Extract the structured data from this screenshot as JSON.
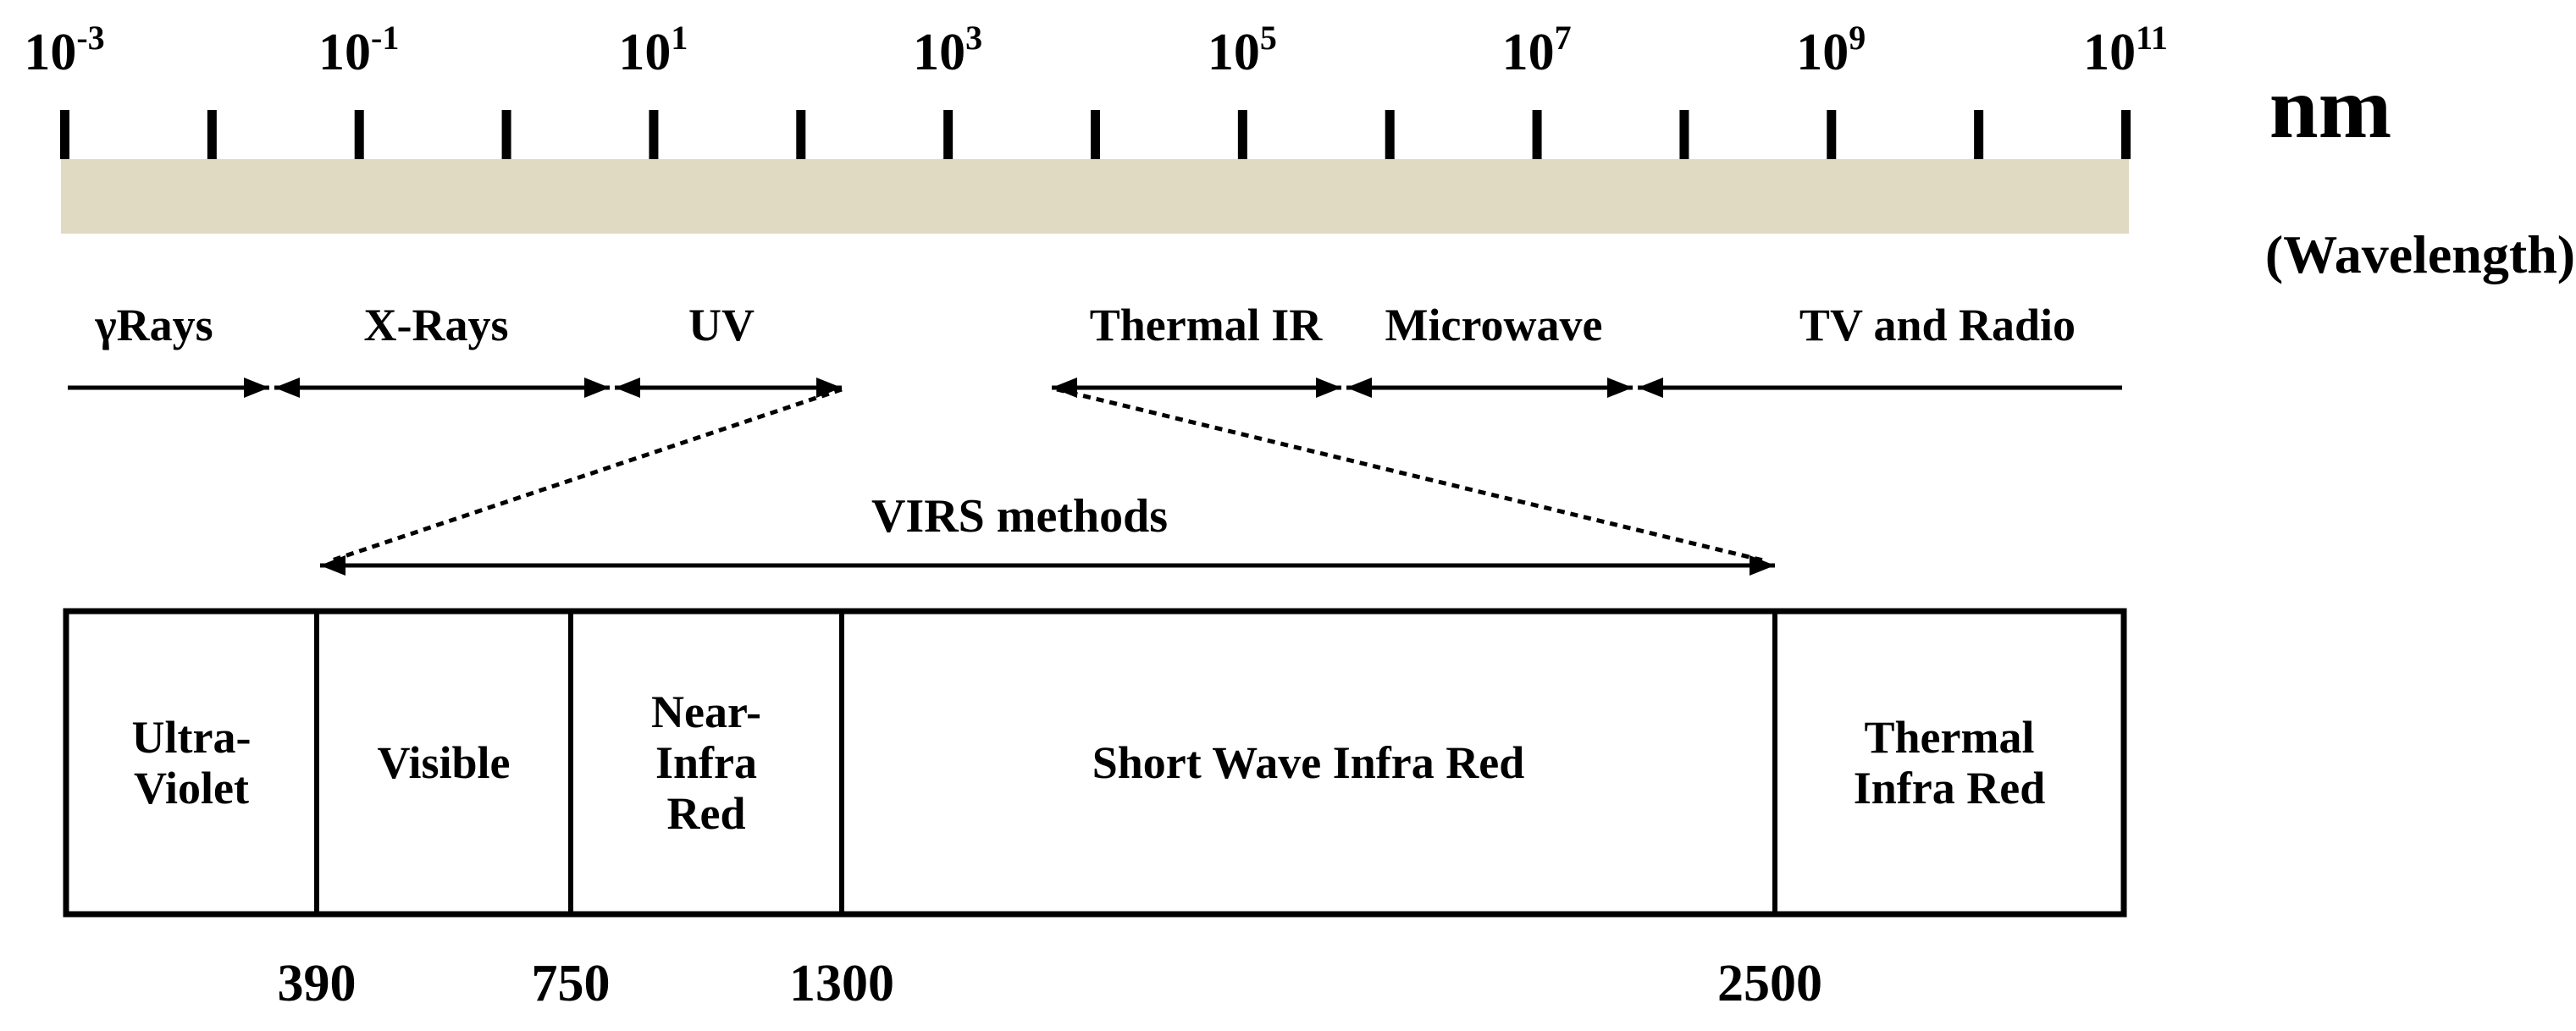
{
  "scale": {
    "tick_labels": [
      {
        "base": "10",
        "exp": "-3"
      },
      {
        "base": "10",
        "exp": "-1"
      },
      {
        "base": "10",
        "exp": "1"
      },
      {
        "base": "10",
        "exp": "3"
      },
      {
        "base": "10",
        "exp": "5"
      },
      {
        "base": "10",
        "exp": "7"
      },
      {
        "base": "10",
        "exp": "9"
      },
      {
        "base": "10",
        "exp": "11"
      }
    ],
    "unit": "nm",
    "unit_caption": "(Wavelength)",
    "bar_color": "#e0dac2"
  },
  "regions": [
    "γRays",
    "X-Rays",
    "UV",
    "Thermal IR",
    "Microwave",
    "TV and Radio"
  ],
  "virs_label": "VIRS methods",
  "bands": [
    {
      "lines": [
        "Ultra-",
        "Violet"
      ]
    },
    {
      "lines": [
        "Visible"
      ]
    },
    {
      "lines": [
        "Near-",
        "Infra",
        "Red"
      ]
    },
    {
      "lines": [
        "Short Wave Infra Red"
      ]
    },
    {
      "lines": [
        "Thermal",
        "Infra Red"
      ]
    }
  ],
  "boundaries": [
    "390",
    "750",
    "1300",
    "2500"
  ]
}
